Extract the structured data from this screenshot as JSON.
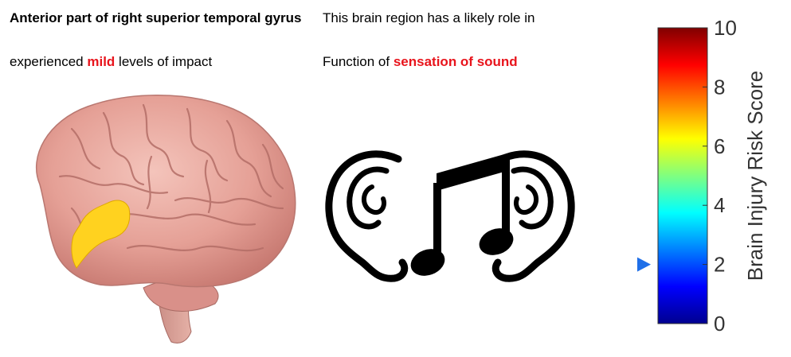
{
  "region": {
    "title": "Anterior part of right superior temporal gyrus",
    "impact_prefix": "experienced",
    "impact_level": "mild",
    "impact_suffix": "levels of impact",
    "impact_color": "#e8141c"
  },
  "role": {
    "intro": "This brain region has a likely role in",
    "function_prefix": "Function of",
    "function_name": "sensation of sound",
    "function_color": "#e8141c"
  },
  "images": {
    "brain": "brain-illustration",
    "highlight_color": "#ffd21f",
    "sound_icon": "ears-and-music-note-icon"
  },
  "colorbar": {
    "label": "Brain Injury Risk Score",
    "min": 0,
    "max": 10,
    "ticks": [
      "0",
      "2",
      "4",
      "6",
      "8",
      "10"
    ],
    "marker_value": 2,
    "marker_color": "#1f6fe8",
    "colormap": "jet"
  }
}
